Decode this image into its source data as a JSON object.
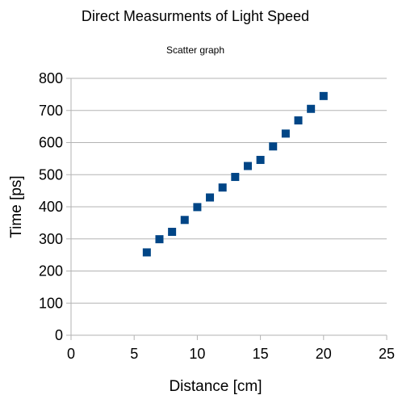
{
  "chart_data": {
    "type": "scatter",
    "title": "Direct Measurments of Light Speed",
    "subtitle": "Scatter graph",
    "xlabel": "Distance [cm]",
    "ylabel": "Time [ps]",
    "xlim": [
      0,
      25
    ],
    "ylim": [
      0,
      800
    ],
    "xticks": [
      "0",
      "5",
      "10",
      "15",
      "20",
      "25"
    ],
    "yticks": [
      "0",
      "100",
      "200",
      "300",
      "400",
      "500",
      "600",
      "700",
      "800"
    ],
    "grid": "horizontal",
    "marker_color": "#004586",
    "series": [
      {
        "x": [
          6,
          7,
          8,
          9,
          10,
          11,
          12,
          13,
          14,
          15,
          16,
          17,
          18,
          19,
          20
        ],
        "y": [
          258,
          299,
          322,
          359,
          399,
          429,
          460,
          493,
          527,
          546,
          588,
          628,
          669,
          705,
          745
        ]
      }
    ]
  }
}
